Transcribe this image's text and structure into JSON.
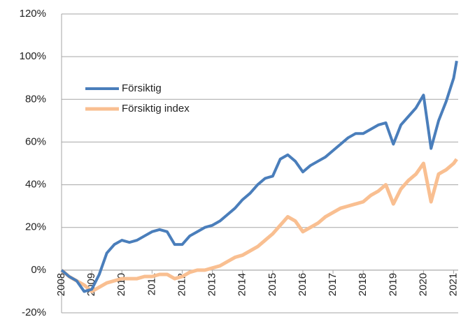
{
  "chart_data": {
    "type": "line",
    "x": [
      2008,
      2008.25,
      2008.5,
      2008.75,
      2009,
      2009.25,
      2009.5,
      2009.75,
      2010,
      2010.25,
      2010.5,
      2010.75,
      2011,
      2011.25,
      2011.5,
      2011.75,
      2012,
      2012.25,
      2012.5,
      2012.75,
      2013,
      2013.25,
      2013.5,
      2013.75,
      2014,
      2014.25,
      2014.5,
      2014.75,
      2015,
      2015.25,
      2015.5,
      2015.75,
      2016,
      2016.25,
      2016.5,
      2016.75,
      2017,
      2017.25,
      2017.5,
      2017.75,
      2018,
      2018.25,
      2018.5,
      2018.75,
      2019,
      2019.25,
      2019.5,
      2019.75,
      2020,
      2020.25,
      2020.5,
      2020.75,
      2021,
      2021.1
    ],
    "series": [
      {
        "name": "Försiktig",
        "color": "#4a7ebb",
        "values": [
          0,
          -3,
          -5,
          -10,
          -9,
          -2,
          8,
          12,
          14,
          13,
          14,
          16,
          18,
          19,
          18,
          12,
          12,
          16,
          18,
          20,
          21,
          23,
          26,
          29,
          33,
          36,
          40,
          43,
          44,
          52,
          54,
          51,
          46,
          49,
          51,
          53,
          56,
          59,
          62,
          64,
          64,
          66,
          68,
          69,
          59,
          68,
          72,
          76,
          82,
          57,
          70,
          79,
          90,
          98
        ]
      },
      {
        "name": "Försiktig index",
        "color": "#f9bf91",
        "values": [
          0,
          -3,
          -5,
          -7,
          -10,
          -8,
          -6,
          -5,
          -4,
          -4,
          -4,
          -3,
          -3,
          -2,
          -2,
          -4,
          -3,
          -1,
          0,
          0,
          1,
          2,
          4,
          6,
          7,
          9,
          11,
          14,
          17,
          21,
          25,
          23,
          18,
          20,
          22,
          25,
          27,
          29,
          30,
          31,
          32,
          35,
          37,
          40,
          31,
          38,
          42,
          45,
          50,
          32,
          45,
          47,
          50,
          52
        ]
      }
    ],
    "xlim": [
      2008,
      2021.15
    ],
    "xticks": [
      2008,
      2009,
      2010,
      2011,
      2012,
      2013,
      2014,
      2015,
      2016,
      2017,
      2018,
      2019,
      2020,
      2021
    ],
    "ylim": [
      -20,
      120
    ],
    "yticks": [
      {
        "value": -20,
        "label": "-20%"
      },
      {
        "value": 0,
        "label": "0%"
      },
      {
        "value": 20,
        "label": "20%"
      },
      {
        "value": 40,
        "label": "40%"
      },
      {
        "value": 60,
        "label": "60%"
      },
      {
        "value": 80,
        "label": "80%"
      },
      {
        "value": 100,
        "label": "100%"
      },
      {
        "value": 120,
        "label": "120%"
      }
    ],
    "grid": true,
    "legend": "upper left"
  }
}
